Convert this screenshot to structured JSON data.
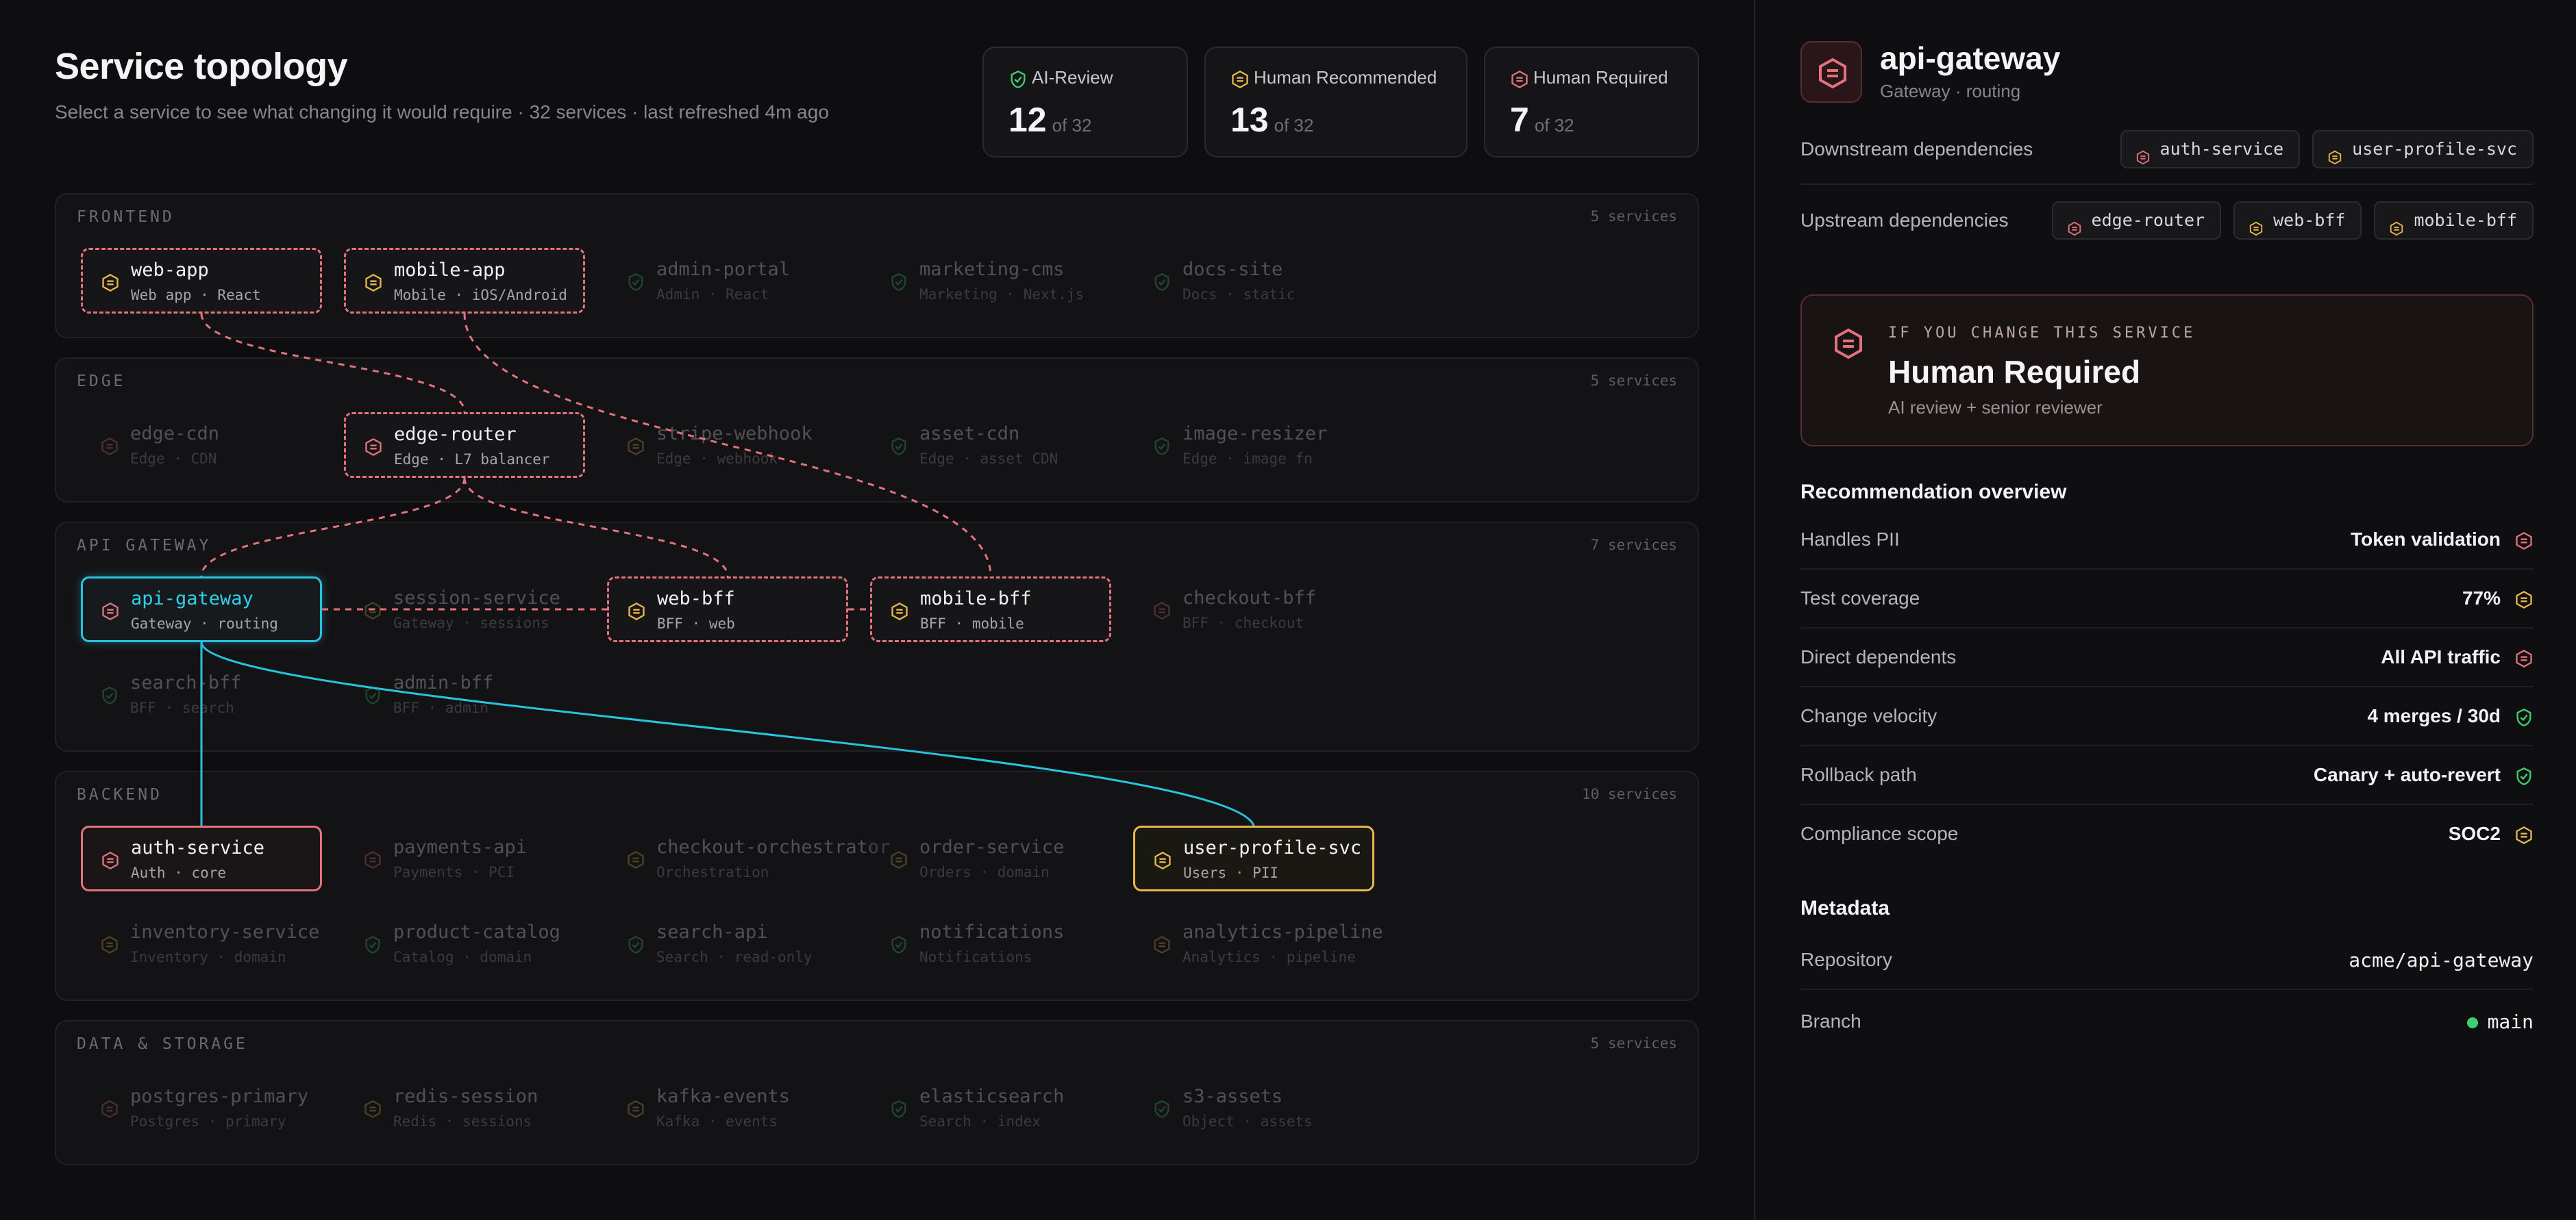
{
  "header": {
    "title": "Service topology",
    "subtitle": "Select a service to see what changing it would require · 32 services · last refreshed 4m ago"
  },
  "stats": [
    {
      "label": "AI-Review",
      "value": "12",
      "of": "of 32",
      "level": "green"
    },
    {
      "label": "Human Recommended",
      "value": "13",
      "of": "of 32",
      "level": "amber"
    },
    {
      "label": "Human Required",
      "value": "7",
      "of": "of 32",
      "level": "red"
    }
  ],
  "tiers": [
    {
      "label": "FRONTEND",
      "count": "5 services",
      "nodes": [
        {
          "name": "web-app",
          "sub": "Web app · React",
          "level": "amber",
          "state": "dash"
        },
        {
          "name": "mobile-app",
          "sub": "Mobile · iOS/Android",
          "level": "amber",
          "state": "dash"
        },
        {
          "name": "admin-portal",
          "sub": "Admin · React",
          "level": "green",
          "state": "dim"
        },
        {
          "name": "marketing-cms",
          "sub": "Marketing · Next.js",
          "level": "green",
          "state": "dim"
        },
        {
          "name": "docs-site",
          "sub": "Docs · static",
          "level": "green",
          "state": "dim"
        }
      ]
    },
    {
      "label": "EDGE",
      "count": "5 services",
      "nodes": [
        {
          "name": "edge-cdn",
          "sub": "Edge · CDN",
          "level": "red",
          "state": "dim"
        },
        {
          "name": "edge-router",
          "sub": "Edge · L7 balancer",
          "level": "red",
          "state": "dash"
        },
        {
          "name": "stripe-webhook",
          "sub": "Edge · webhook",
          "level": "amber",
          "state": "dim"
        },
        {
          "name": "asset-cdn",
          "sub": "Edge · asset CDN",
          "level": "green",
          "state": "dim"
        },
        {
          "name": "image-resizer",
          "sub": "Edge · image fn",
          "level": "green",
          "state": "dim"
        }
      ]
    },
    {
      "label": "API GATEWAY",
      "count": "7 services",
      "nodes": [
        {
          "name": "api-gateway",
          "sub": "Gateway · routing",
          "level": "red",
          "state": "sel"
        },
        {
          "name": "session-service",
          "sub": "Gateway · sessions",
          "level": "amber",
          "state": "dim"
        },
        {
          "name": "web-bff",
          "sub": "BFF · web",
          "level": "amber",
          "state": "dash"
        },
        {
          "name": "mobile-bff",
          "sub": "BFF · mobile",
          "level": "amber",
          "state": "dash"
        },
        {
          "name": "checkout-bff",
          "sub": "BFF · checkout",
          "level": "red",
          "state": "dim"
        },
        {
          "name": "search-bff",
          "sub": "BFF · search",
          "level": "green",
          "state": "dim"
        },
        {
          "name": "admin-bff",
          "sub": "BFF · admin",
          "level": "green",
          "state": "dim"
        }
      ]
    },
    {
      "label": "BACKEND",
      "count": "10 services",
      "nodes": [
        {
          "name": "auth-service",
          "sub": "Auth · core",
          "level": "red",
          "state": "red"
        },
        {
          "name": "payments-api",
          "sub": "Payments · PCI",
          "level": "red",
          "state": "dim"
        },
        {
          "name": "checkout-orchestrator",
          "sub": "Orchestration",
          "level": "amber",
          "state": "dim"
        },
        {
          "name": "order-service",
          "sub": "Orders · domain",
          "level": "amber",
          "state": "dim"
        },
        {
          "name": "user-profile-svc",
          "sub": "Users · PII",
          "level": "amber",
          "state": "amber"
        },
        {
          "name": "inventory-service",
          "sub": "Inventory · domain",
          "level": "amber",
          "state": "dim"
        },
        {
          "name": "product-catalog",
          "sub": "Catalog · domain",
          "level": "green",
          "state": "dim"
        },
        {
          "name": "search-api",
          "sub": "Search · read-only",
          "level": "green",
          "state": "dim"
        },
        {
          "name": "notifications",
          "sub": "Notifications",
          "level": "green",
          "state": "dim"
        },
        {
          "name": "analytics-pipeline",
          "sub": "Analytics · pipeline",
          "level": "amber",
          "state": "dim"
        }
      ]
    },
    {
      "label": "DATA & STORAGE",
      "count": "5 services",
      "nodes": [
        {
          "name": "postgres-primary",
          "sub": "Postgres · primary",
          "level": "red",
          "state": "dim"
        },
        {
          "name": "redis-session",
          "sub": "Redis · sessions",
          "level": "amber",
          "state": "dim"
        },
        {
          "name": "kafka-events",
          "sub": "Kafka · events",
          "level": "amber",
          "state": "dim"
        },
        {
          "name": "elasticsearch",
          "sub": "Search · index",
          "level": "green",
          "state": "dim"
        },
        {
          "name": "s3-assets",
          "sub": "Object · assets",
          "level": "green",
          "state": "dim"
        }
      ]
    }
  ],
  "detail": {
    "title": "api-gateway",
    "subtitle": "Gateway · routing",
    "downstream_label": "Downstream dependencies",
    "downstream": [
      {
        "name": "auth-service",
        "level": "red"
      },
      {
        "name": "user-profile-svc",
        "level": "amber"
      }
    ],
    "upstream_label": "Upstream dependencies",
    "upstream": [
      {
        "name": "edge-router",
        "level": "red"
      },
      {
        "name": "web-bff",
        "level": "amber"
      },
      {
        "name": "mobile-bff",
        "level": "amber"
      }
    ],
    "callout": {
      "eyebrow": "IF YOU CHANGE THIS SERVICE",
      "title": "Human Required",
      "sub": "AI review + senior reviewer"
    },
    "overview_title": "Recommendation overview",
    "overview": [
      {
        "k": "Handles PII",
        "v": "Token validation",
        "level": "red"
      },
      {
        "k": "Test coverage",
        "v": "77%",
        "level": "amber"
      },
      {
        "k": "Direct dependents",
        "v": "All API traffic",
        "level": "red"
      },
      {
        "k": "Change velocity",
        "v": "4 merges / 30d",
        "level": "green"
      },
      {
        "k": "Rollback path",
        "v": "Canary + auto-revert",
        "level": "green"
      },
      {
        "k": "Compliance scope",
        "v": "SOC2",
        "level": "amber"
      }
    ],
    "metadata_title": "Metadata",
    "metadata": [
      {
        "k": "Repository",
        "v": "acme/api-gateway"
      },
      {
        "k": "Branch",
        "v": "main"
      }
    ]
  },
  "colors": {
    "red": "#e2737b",
    "amber": "#e8b84a",
    "green": "#3ecf6e",
    "accent": "#28c3df"
  }
}
